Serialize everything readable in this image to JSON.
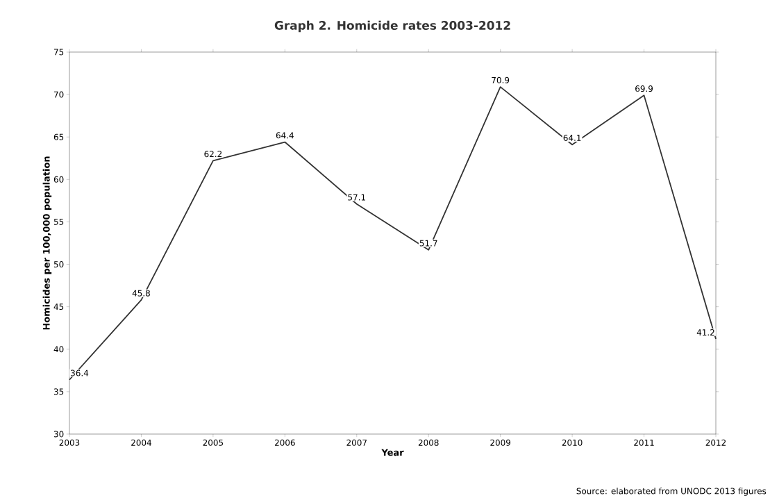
{
  "chart_data": {
    "type": "line",
    "title": "Graph 2. Homicide rates 2003-2012",
    "xlabel": "Year",
    "ylabel": "Homicides per 100,000 population",
    "x": [
      2003,
      2004,
      2005,
      2006,
      2007,
      2008,
      2009,
      2010,
      2011,
      2012
    ],
    "values": [
      36.4,
      45.8,
      62.2,
      64.4,
      57.1,
      51.7,
      70.9,
      64.1,
      69.9,
      41.2
    ],
    "color": "#333333",
    "data_labels": true,
    "grid": false,
    "marker": "none",
    "line_style": "solid",
    "xlim": [
      2003,
      2012
    ],
    "xticks": [
      2003,
      2004,
      2005,
      2006,
      2007,
      2008,
      2009,
      2010,
      2011,
      2012
    ],
    "ylim": [
      30,
      75
    ],
    "yticks": [
      30,
      35,
      40,
      45,
      50,
      55,
      60,
      65,
      70,
      75
    ],
    "annotations": [
      "Source: elaborated from UNODC 2013 figures"
    ]
  }
}
